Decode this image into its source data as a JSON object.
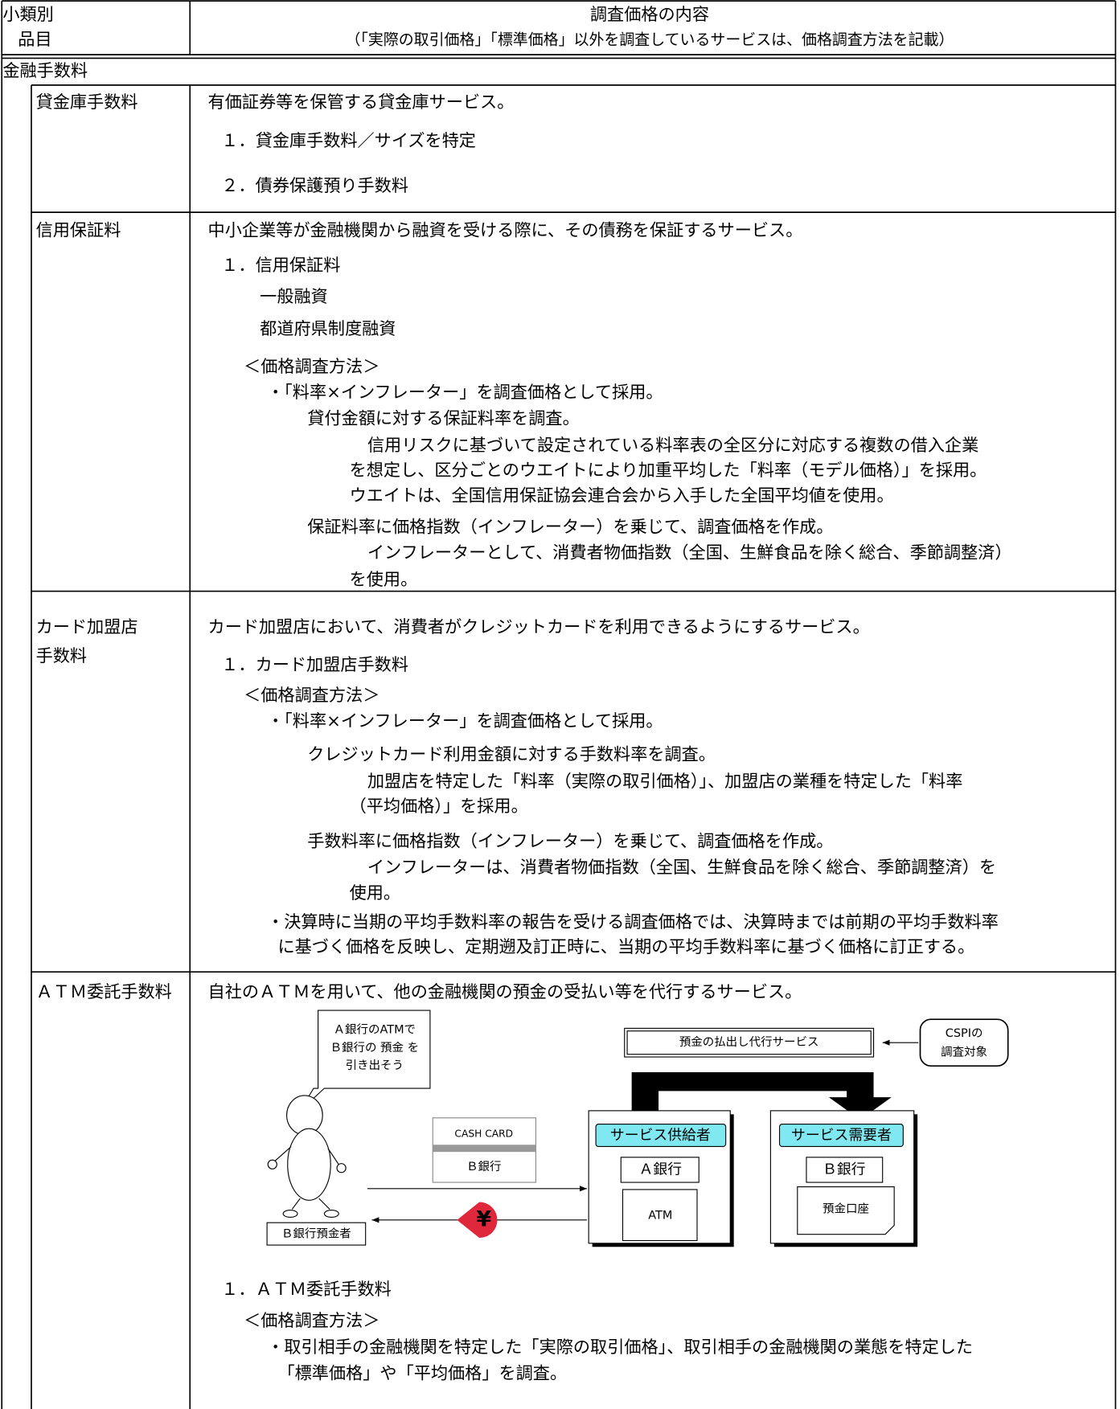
{
  "header": {
    "col1": [
      "小類別",
      "品目"
    ],
    "col2": [
      "調査価格の内容",
      "（「実際の取引価格」「標準価格」以外を調査しているサービスは、価格調査方法を記載）"
    ]
  },
  "category": "金融手数料",
  "items": [
    {
      "name": [
        "貸金庫手数料"
      ],
      "lines": [
        "有価証券等を保管する貸金庫サービス。",
        "１．貸金庫手数料／サイズを特定",
        "２．債券保護預り手数料"
      ]
    },
    {
      "name": [
        "信用保証料"
      ],
      "lines": [
        "中小企業等が金融機関から融資を受ける際に、その債務を保証するサービス。",
        "１．信用保証料",
        "一般融資",
        "都道府県制度融資",
        "＜価格調査方法＞",
        "・「料率×インフレーター」を調査価格として採用。",
        "貸付金額に対する保証料率を調査。",
        "信用リスクに基づいて設定されている料率表の全区分に対応する複数の借入企業",
        "を想定し、区分ごとのウエイトにより加重平均した「料率（モデル価格）」を採用。",
        "ウエイトは、全国信用保証協会連合会から入手した全国平均値を使用。",
        "保証料率に価格指数（インフレーター）を乗じて、調査価格を作成。",
        "インフレーターとして、消費者物価指数（全国、生鮮食品を除く総合、季節調整済）",
        "を使用。"
      ]
    },
    {
      "name": [
        "カード加盟店",
        "手数料"
      ],
      "lines": [
        "カード加盟店において、消費者がクレジットカードを利用できるようにするサービス。",
        "１．カード加盟店手数料",
        "＜価格調査方法＞",
        "・「料率×インフレーター」を調査価格として採用。",
        "クレジットカード利用金額に対する手数料率を調査。",
        "加盟店を特定した「料率（実際の取引価格）」、加盟店の業種を特定した「料率",
        "（平均価格）」を採用。",
        "手数料率に価格指数（インフレーター）を乗じて、調査価格を作成。",
        "インフレーターは、消費者物価指数（全国、生鮮食品を除く総合、季節調整済）を",
        "使用。",
        "・決算時に当期の平均手数料率の報告を受ける調査価格では、決算時までは前期の平均手数料率",
        "に基づく価格を反映し、定期遡及訂正時に、当期の平均手数料率に基づく価格に訂正する。"
      ]
    },
    {
      "name": [
        "ＡＴＭ委託手数料"
      ],
      "lines": [
        "自社のＡＴＭを用いて、他の金融機関の預金の受払い等を代行するサービス。",
        "１．ＡＴＭ委託手数料",
        "＜価格調査方法＞",
        "・取引相手の金融機関を特定した「実際の取引価格」、取引相手の金融機関の業態を特定した",
        "「標準価格」や「平均価格」を調査。"
      ]
    }
  ],
  "diagram": {
    "bubble": [
      "Ａ銀行のATMで",
      "Ｂ銀行の 預金 を",
      "引き出そう"
    ],
    "top_box": "預金の払出し代行サービス",
    "note": [
      "CSPIの",
      "調査対象"
    ],
    "card": [
      "CASH CARD",
      "Ｂ銀行"
    ],
    "yen": "¥",
    "customer": "Ｂ銀行預金者",
    "supplier": {
      "tag": "サービス供給者",
      "bank": "Ａ銀行",
      "device": "ATM"
    },
    "demander": {
      "tag": "サービス需要者",
      "bank": "Ｂ銀行",
      "device": "預金口座"
    }
  }
}
